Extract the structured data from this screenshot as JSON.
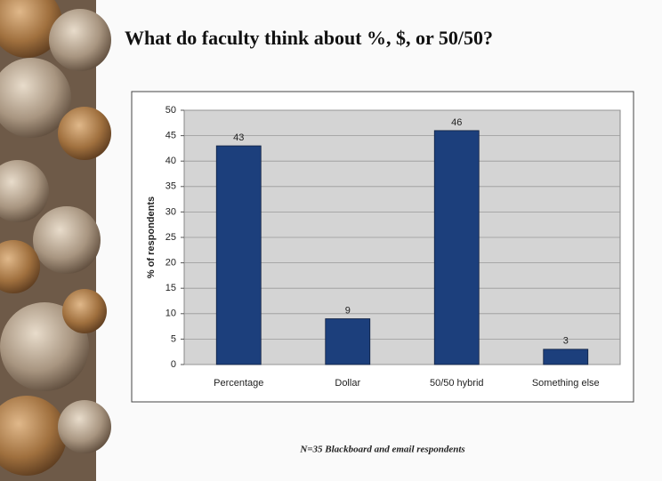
{
  "chart_data": {
    "type": "bar",
    "title": "What do faculty think about %, $, or 50/50?",
    "y_label": "% of respondents",
    "categories": [
      "Percentage",
      "Dollar",
      "50/50 hybrid",
      "Something else"
    ],
    "values": [
      43,
      9,
      46,
      3
    ],
    "color": "#1c3f7c",
    "ylim": [
      0,
      50
    ],
    "yticks": [
      0,
      5,
      10,
      15,
      20,
      25,
      30,
      35,
      40,
      45,
      50
    ],
    "grid": true,
    "footnote": "N=35 Blackboard and email respondents"
  }
}
